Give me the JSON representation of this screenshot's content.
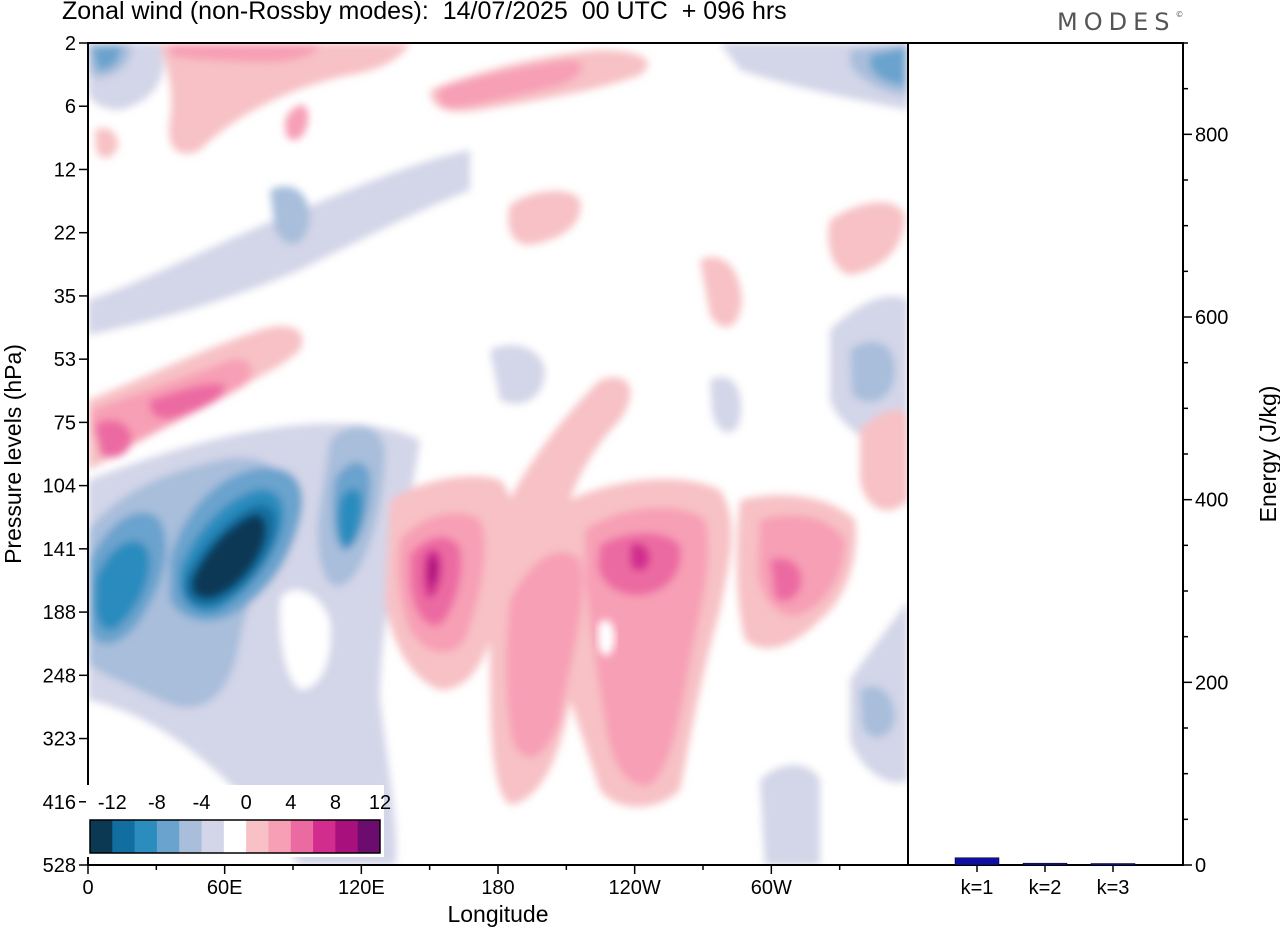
{
  "header": {
    "title": "Zonal wind (non-Rossby modes):  14/07/2025  00 UTC  + 096 hrs",
    "brand": "MODES",
    "brand_mark": "©"
  },
  "chart_data": [
    {
      "type": "heatmap",
      "title": "Zonal wind (non-Rossby modes):  14/07/2025  00 UTC  + 096 hrs",
      "xlabel": "Longitude",
      "ylabel": "Pressure levels (hPa)",
      "x_ticks": [
        "0",
        "60E",
        "120E",
        "180",
        "120W",
        "60W"
      ],
      "x_tick_values": [
        0,
        60,
        120,
        180,
        240,
        300
      ],
      "xlim": [
        0,
        360
      ],
      "y_ticks": [
        "2",
        "6",
        "12",
        "22",
        "35",
        "53",
        "75",
        "104",
        "141",
        "188",
        "248",
        "323",
        "416",
        "528"
      ],
      "colorbar": {
        "labels": [
          "-12",
          "-8",
          "-4",
          "0",
          "4",
          "8",
          "12"
        ],
        "levels": [
          -14,
          -12,
          -10,
          -8,
          -6,
          -4,
          -2,
          2,
          4,
          6,
          8,
          10,
          12,
          14
        ],
        "colors": [
          "#0b3954",
          "#126ea0",
          "#2b8cbe",
          "#6aa3cd",
          "#a8bedb",
          "#d3d5e8",
          "#ffffff",
          "#f7c1c5",
          "#f79fb5",
          "#ec6aa2",
          "#d22d8e",
          "#a8107e",
          "#6b0c6e"
        ]
      },
      "features": [
        {
          "lon": 72,
          "level": "141",
          "value": -14
        },
        {
          "lon": 15,
          "level": "188",
          "value": -10
        },
        {
          "lon": 112,
          "level": "141",
          "value": -8
        },
        {
          "lon": 5,
          "level": "2",
          "value": -7
        },
        {
          "lon": 355,
          "level": "2",
          "value": -7
        },
        {
          "lon": 350,
          "level": "53",
          "value": -4
        },
        {
          "lon": 340,
          "level": "323",
          "value": -4
        },
        {
          "lon": 12,
          "level": "75",
          "value": 6
        },
        {
          "lon": 45,
          "level": "75",
          "value": 6
        },
        {
          "lon": 150,
          "level": "141",
          "value": 8
        },
        {
          "lon": 250,
          "level": "141",
          "value": 7
        },
        {
          "lon": 310,
          "level": "141",
          "value": 5
        },
        {
          "lon": 205,
          "level": "323",
          "value": 4
        },
        {
          "lon": 250,
          "level": "323",
          "value": 4
        },
        {
          "lon": 230,
          "level": "12",
          "value": 3
        }
      ]
    },
    {
      "type": "bar",
      "categories": [
        "k=1",
        "k=2",
        "k=3"
      ],
      "values": [
        8,
        2,
        1
      ],
      "ylabel": "Energy (J/kg)",
      "ylim": [
        0,
        900
      ],
      "y_ticks": [
        0,
        200,
        400,
        600,
        800
      ],
      "color": "#1010a0"
    }
  ]
}
